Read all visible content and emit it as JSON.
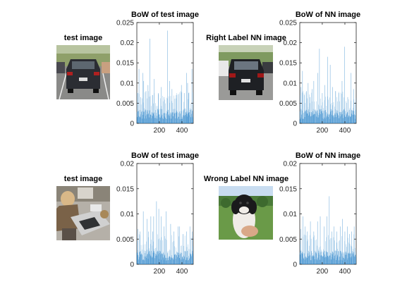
{
  "panels": [
    {
      "img_title": "test image",
      "bow_title": "BoW of test image"
    },
    {
      "img_title": "Right Label NN image",
      "bow_title": "BoW of NN image"
    },
    {
      "img_title": "test image",
      "bow_title": "BoW of test image"
    },
    {
      "img_title": "Wrong Label NN image",
      "bow_title": "BoW of NN image"
    }
  ],
  "colors": {
    "bar": "#2e86cb",
    "axis": "#262626"
  },
  "chart_data": [
    {
      "type": "bar",
      "title": "BoW of test image",
      "xlim": [
        1,
        500
      ],
      "ylim": [
        0,
        0.025
      ],
      "xticks": [
        200,
        400
      ],
      "xtick_labels": [
        "200",
        "400"
      ],
      "yticks": [
        0,
        0.005,
        0.01,
        0.015,
        0.02,
        0.025
      ],
      "ytick_labels": [
        "0",
        "0.005",
        "0.01",
        "0.015",
        "0.02",
        "0.025"
      ],
      "peaks": [
        [
          12,
          0.0075
        ],
        [
          20,
          0.0135
        ],
        [
          35,
          0.0065
        ],
        [
          55,
          0.0125
        ],
        [
          62,
          0.0105
        ],
        [
          82,
          0.008
        ],
        [
          100,
          0.0095
        ],
        [
          118,
          0.021
        ],
        [
          140,
          0.007
        ],
        [
          155,
          0.011
        ],
        [
          190,
          0.0075
        ],
        [
          215,
          0.009
        ],
        [
          240,
          0.0065
        ],
        [
          272,
          0.023
        ],
        [
          290,
          0.0105
        ],
        [
          312,
          0.0085
        ],
        [
          350,
          0.007
        ],
        [
          395,
          0.0095
        ],
        [
          420,
          0.0075
        ],
        [
          440,
          0.0125
        ],
        [
          450,
          0.01
        ],
        [
          458,
          0.0075
        ],
        [
          488,
          0.0135
        ]
      ],
      "base_level": 0.002
    },
    {
      "type": "bar",
      "title": "BoW of NN image",
      "xlim": [
        1,
        500
      ],
      "ylim": [
        0,
        0.025
      ],
      "xticks": [
        200,
        400
      ],
      "xtick_labels": [
        "200",
        "400"
      ],
      "yticks": [
        0,
        0.005,
        0.01,
        0.015,
        0.02,
        0.025
      ],
      "ytick_labels": [
        "0",
        "0.005",
        "0.01",
        "0.015",
        "0.02",
        "0.025"
      ],
      "peaks": [
        [
          10,
          0.009
        ],
        [
          25,
          0.013
        ],
        [
          40,
          0.007
        ],
        [
          60,
          0.008
        ],
        [
          75,
          0.01
        ],
        [
          90,
          0.0065
        ],
        [
          110,
          0.0085
        ],
        [
          125,
          0.0105
        ],
        [
          160,
          0.0125
        ],
        [
          175,
          0.0185
        ],
        [
          200,
          0.0075
        ],
        [
          222,
          0.0095
        ],
        [
          248,
          0.0165
        ],
        [
          270,
          0.0145
        ],
        [
          290,
          0.009
        ],
        [
          318,
          0.008
        ],
        [
          345,
          0.0075
        ],
        [
          375,
          0.0105
        ],
        [
          398,
          0.019
        ],
        [
          425,
          0.0065
        ],
        [
          455,
          0.0125
        ],
        [
          478,
          0.0085
        ]
      ],
      "base_level": 0.002
    },
    {
      "type": "bar",
      "title": "BoW of test image",
      "xlim": [
        1,
        500
      ],
      "ylim": [
        0,
        0.02
      ],
      "xticks": [
        200,
        400
      ],
      "xtick_labels": [
        "200",
        "400"
      ],
      "yticks": [
        0,
        0.005,
        0.01,
        0.015,
        0.02
      ],
      "ytick_labels": [
        "0",
        "0.005",
        "0.01",
        "0.015",
        "0.02"
      ],
      "peaks": [
        [
          10,
          0.007
        ],
        [
          30,
          0.0065
        ],
        [
          58,
          0.0105
        ],
        [
          90,
          0.009
        ],
        [
          105,
          0.0065
        ],
        [
          125,
          0.0095
        ],
        [
          140,
          0.0065
        ],
        [
          150,
          0.0095
        ],
        [
          175,
          0.0125
        ],
        [
          195,
          0.011
        ],
        [
          215,
          0.0095
        ],
        [
          240,
          0.0075
        ],
        [
          260,
          0.0105
        ],
        [
          300,
          0.008
        ],
        [
          330,
          0.0065
        ],
        [
          365,
          0.0075
        ],
        [
          380,
          0.0075
        ],
        [
          408,
          0.006
        ],
        [
          440,
          0.0065
        ],
        [
          470,
          0.0075
        ],
        [
          490,
          0.0065
        ]
      ],
      "base_level": 0.0015
    },
    {
      "type": "bar",
      "title": "BoW of NN image",
      "xlim": [
        1,
        500
      ],
      "ylim": [
        0,
        0.02
      ],
      "xticks": [
        200,
        400
      ],
      "xtick_labels": [
        "200",
        "400"
      ],
      "yticks": [
        0,
        0.005,
        0.01,
        0.015,
        0.02
      ],
      "ytick_labels": [
        "0",
        "0.005",
        "0.01",
        "0.015",
        "0.02"
      ],
      "peaks": [
        [
          12,
          0.007
        ],
        [
          30,
          0.0095
        ],
        [
          48,
          0.0075
        ],
        [
          68,
          0.0065
        ],
        [
          95,
          0.0085
        ],
        [
          125,
          0.0065
        ],
        [
          158,
          0.0085
        ],
        [
          182,
          0.0095
        ],
        [
          215,
          0.0075
        ],
        [
          240,
          0.0095
        ],
        [
          262,
          0.0135
        ],
        [
          285,
          0.0065
        ],
        [
          305,
          0.0075
        ],
        [
          330,
          0.0065
        ],
        [
          358,
          0.0075
        ],
        [
          378,
          0.009
        ],
        [
          400,
          0.0065
        ],
        [
          422,
          0.0075
        ],
        [
          440,
          0.006
        ],
        [
          458,
          0.0065
        ],
        [
          482,
          0.0075
        ]
      ],
      "base_level": 0.0015
    }
  ]
}
